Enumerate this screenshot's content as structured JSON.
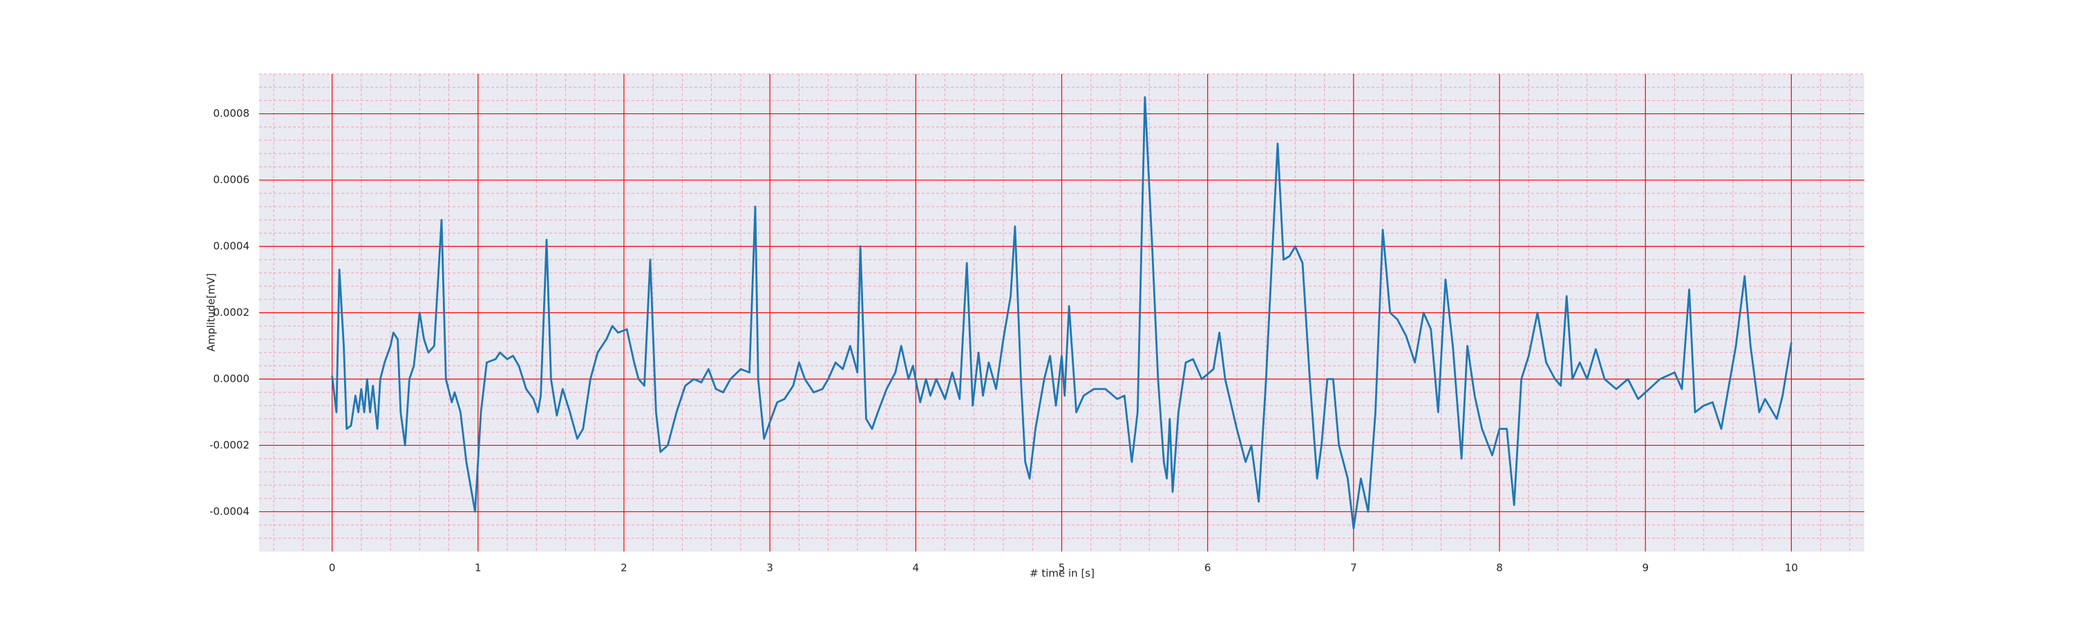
{
  "chart_data": {
    "type": "line",
    "xlabel": "# time in [s]",
    "ylabel": "Amplitude[mV]",
    "xlim": [
      -0.5,
      10.5
    ],
    "ylim": [
      -0.00052,
      0.00092
    ],
    "xticks": [
      0,
      1,
      2,
      3,
      4,
      5,
      6,
      7,
      8,
      9,
      10
    ],
    "yticks": [
      {
        "value": -0.0004,
        "label": "-0.0004"
      },
      {
        "value": -0.0002,
        "label": "-0.0002"
      },
      {
        "value": 0,
        "label": "0.0000"
      },
      {
        "value": 0.0002,
        "label": "0.0002"
      },
      {
        "value": 0.0004,
        "label": "0.0004"
      },
      {
        "value": 0.0006,
        "label": "0.0006"
      },
      {
        "value": 0.0008,
        "label": "0.0008"
      }
    ],
    "grid": true,
    "minor_grid": true,
    "grid_color": "#ff0000",
    "minor_grid_color": "#f4a0b0",
    "background": "#eaeaf2",
    "color": "#1f77b4",
    "x": [
      0,
      0.03,
      0.05,
      0.08,
      0.1,
      0.13,
      0.16,
      0.18,
      0.2,
      0.22,
      0.24,
      0.26,
      0.28,
      0.31,
      0.33,
      0.36,
      0.4,
      0.42,
      0.45,
      0.47,
      0.5,
      0.53,
      0.56,
      0.6,
      0.63,
      0.66,
      0.7,
      0.75,
      0.78,
      0.82,
      0.84,
      0.88,
      0.92,
      0.98,
      1.02,
      1.06,
      1.12,
      1.15,
      1.2,
      1.24,
      1.28,
      1.33,
      1.38,
      1.41,
      1.43,
      1.47,
      1.5,
      1.54,
      1.58,
      1.63,
      1.68,
      1.72,
      1.77,
      1.82,
      1.88,
      1.92,
      1.96,
      2.02,
      2.07,
      2.1,
      2.14,
      2.18,
      2.22,
      2.25,
      2.3,
      2.36,
      2.42,
      2.48,
      2.53,
      2.58,
      2.63,
      2.68,
      2.73,
      2.8,
      2.86,
      2.9,
      2.92,
      2.96,
      3.0,
      3.05,
      3.1,
      3.16,
      3.2,
      3.24,
      3.3,
      3.36,
      3.4,
      3.45,
      3.5,
      3.55,
      3.6,
      3.62,
      3.66,
      3.7,
      3.74,
      3.8,
      3.86,
      3.9,
      3.95,
      3.98,
      4.03,
      4.07,
      4.1,
      4.14,
      4.2,
      4.25,
      4.3,
      4.35,
      4.39,
      4.43,
      4.46,
      4.5,
      4.55,
      4.6,
      4.65,
      4.68,
      4.72,
      4.75,
      4.78,
      4.82,
      4.88,
      4.92,
      4.96,
      5.0,
      5.02,
      5.05,
      5.1,
      5.15,
      5.22,
      5.3,
      5.38,
      5.43,
      5.48,
      5.52,
      5.57,
      5.62,
      5.66,
      5.7,
      5.72,
      5.74,
      5.76,
      5.8,
      5.85,
      5.9,
      5.96,
      6.04,
      6.08,
      6.12,
      6.2,
      6.26,
      6.3,
      6.35,
      6.4,
      6.48,
      6.52,
      6.56,
      6.6,
      6.65,
      6.7,
      6.75,
      6.78,
      6.82,
      6.86,
      6.9,
      6.96,
      7.0,
      7.05,
      7.1,
      7.15,
      7.2,
      7.25,
      7.3,
      7.36,
      7.42,
      7.48,
      7.53,
      7.58,
      7.63,
      7.68,
      7.74,
      7.78,
      7.83,
      7.88,
      7.95,
      8.0,
      8.05,
      8.1,
      8.15,
      8.2,
      8.26,
      8.32,
      8.38,
      8.42,
      8.46,
      8.5,
      8.55,
      8.6,
      8.66,
      8.72,
      8.8,
      8.88,
      8.95,
      9.05,
      9.1,
      9.2,
      9.25,
      9.3,
      9.34,
      9.4,
      9.46,
      9.52,
      9.58,
      9.62,
      9.68,
      9.72,
      9.78,
      9.82,
      9.9,
      9.94,
      10.0
    ],
    "values": [
      1e-05,
      -0.0001,
      0.00033,
      0.0001,
      -0.00015,
      -0.00014,
      -5e-05,
      -0.0001,
      -3e-05,
      -0.0001,
      0,
      -0.0001,
      -2e-05,
      -0.00015,
      0,
      5e-05,
      0.0001,
      0.00014,
      0.00012,
      -0.0001,
      -0.0002,
      0,
      4e-05,
      0.0002,
      0.00012,
      8e-05,
      0.0001,
      0.00048,
      0,
      -7e-05,
      -4e-05,
      -0.0001,
      -0.00025,
      -0.0004,
      -0.0001,
      5e-05,
      6e-05,
      8e-05,
      6e-05,
      7e-05,
      4e-05,
      -3e-05,
      -6e-05,
      -0.0001,
      -5e-05,
      0.00042,
      0,
      -0.00011,
      -3e-05,
      -0.0001,
      -0.00018,
      -0.00015,
      0,
      8e-05,
      0.00012,
      0.00016,
      0.00014,
      0.00015,
      5e-05,
      0,
      -2e-05,
      0.00036,
      -0.0001,
      -0.00022,
      -0.0002,
      -0.0001,
      -2e-05,
      0,
      -1e-05,
      3e-05,
      -3e-05,
      -4e-05,
      0,
      3e-05,
      2e-05,
      0.00052,
      0,
      -0.00018,
      -0.00013,
      -7e-05,
      -6e-05,
      -2e-05,
      5e-05,
      0,
      -4e-05,
      -3e-05,
      0,
      5e-05,
      3e-05,
      0.0001,
      2e-05,
      0.0004,
      -0.00012,
      -0.00015,
      -0.0001,
      -3e-05,
      2e-05,
      0.0001,
      0,
      4e-05,
      -7e-05,
      0,
      -5e-05,
      0,
      -6e-05,
      2e-05,
      -6e-05,
      0.00035,
      -8e-05,
      8e-05,
      -5e-05,
      5e-05,
      -3e-05,
      0.00012,
      0.00025,
      0.00046,
      0,
      -0.00025,
      -0.0003,
      -0.00015,
      0,
      7e-05,
      -8e-05,
      7e-05,
      -5e-05,
      0.00022,
      -0.0001,
      -5e-05,
      -3e-05,
      -3e-05,
      -6e-05,
      -5e-05,
      -0.00025,
      -0.0001,
      0.00085,
      0.0004,
      0,
      -0.00025,
      -0.0003,
      -0.00012,
      -0.00034,
      -0.0001,
      5e-05,
      6e-05,
      0,
      3e-05,
      0.00014,
      0,
      -0.00015,
      -0.00025,
      -0.0002,
      -0.00037,
      0,
      0.00071,
      0.00036,
      0.00037,
      0.0004,
      0.00035,
      0,
      -0.0003,
      -0.0002,
      0,
      0,
      -0.0002,
      -0.0003,
      -0.00045,
      -0.0003,
      -0.0004,
      -0.0001,
      0.00045,
      0.0002,
      0.00018,
      0.00013,
      5e-05,
      0.0002,
      0.00015,
      -0.0001,
      0.0003,
      0.0001,
      -0.00024,
      0.0001,
      -5e-05,
      -0.00015,
      -0.00023,
      -0.00015,
      -0.00015,
      -0.00038,
      0,
      7e-05,
      0.0002,
      5e-05,
      0,
      -2e-05,
      0.00025,
      0,
      5e-05,
      0,
      9e-05,
      0,
      -3e-05,
      0,
      -6e-05,
      -2e-05,
      0,
      2e-05,
      -3e-05,
      0.00027,
      -0.0001,
      -8e-05,
      -7e-05,
      -0.00015,
      0,
      0.0001,
      0.00031,
      0.0001,
      -0.0001,
      -6e-05,
      -0.00012,
      -5e-05,
      0.00011
    ]
  }
}
